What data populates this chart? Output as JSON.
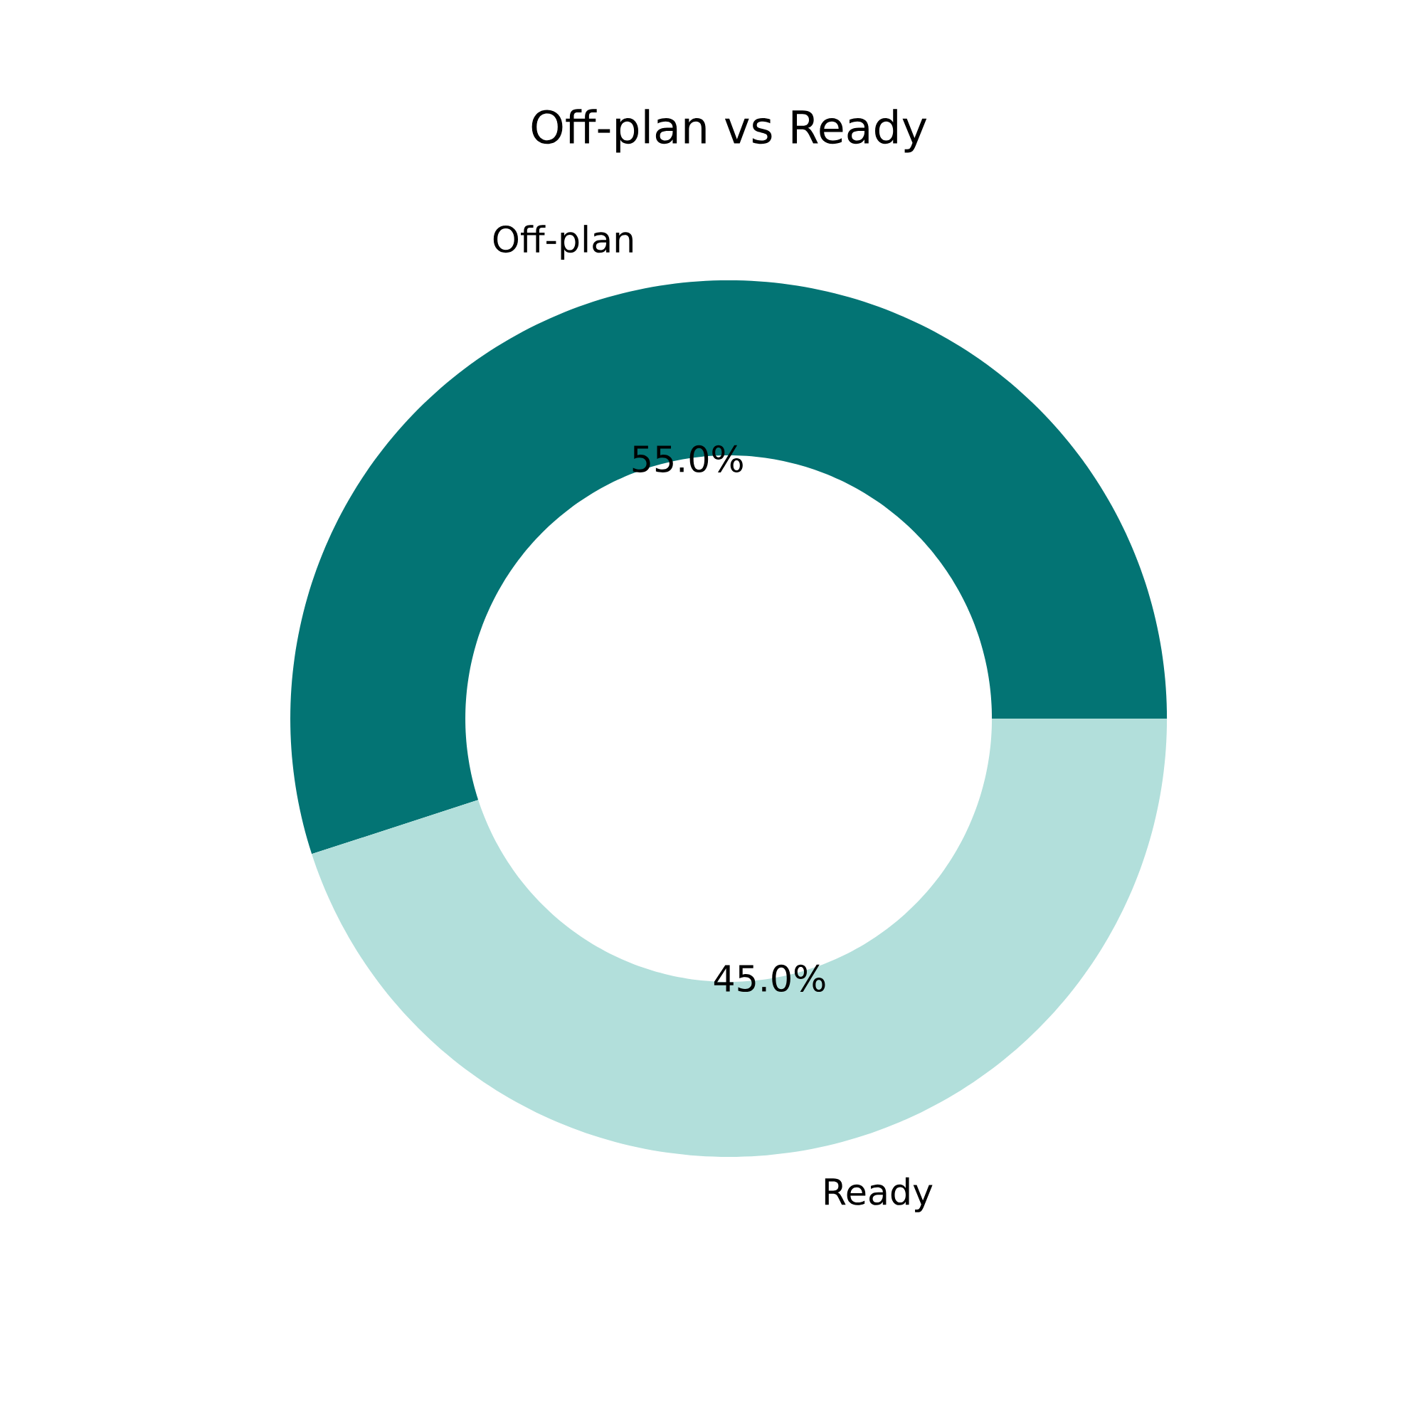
{
  "chart_data": {
    "type": "donut",
    "title": "Off-plan vs Ready",
    "categories": [
      "Off-plan",
      "Ready"
    ],
    "values": [
      55,
      45
    ],
    "colors": [
      "#037474",
      "#b2dfdb"
    ],
    "value_labels": [
      "55.0%",
      "45.0%"
    ]
  }
}
